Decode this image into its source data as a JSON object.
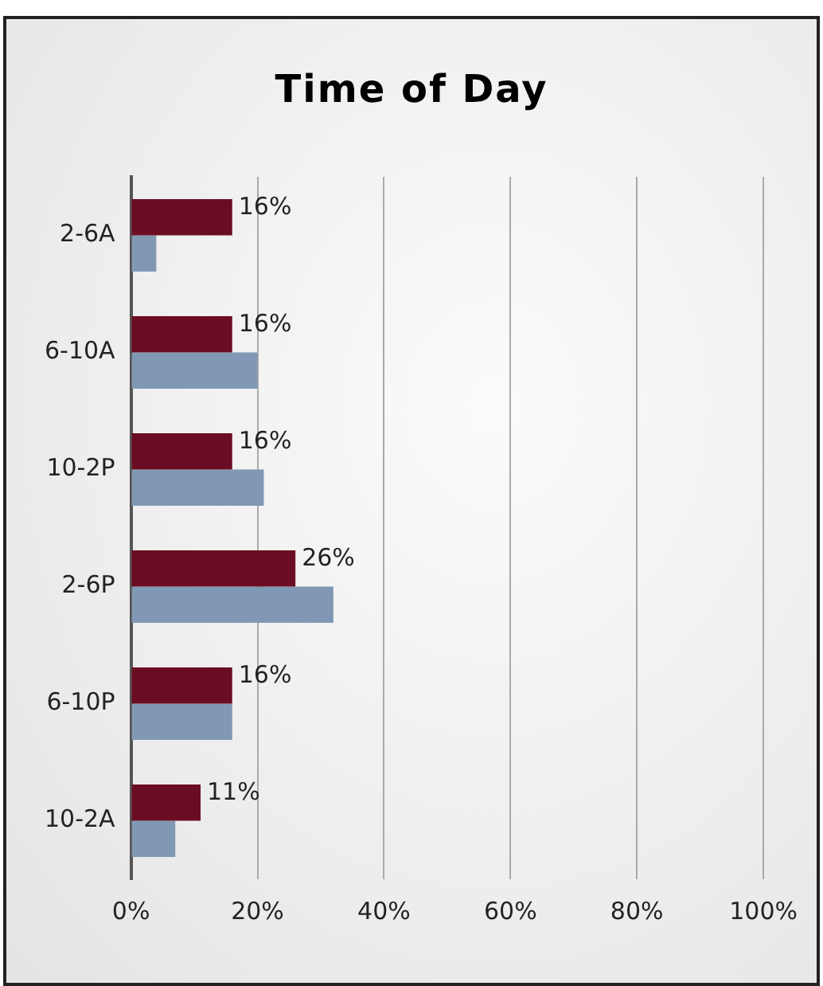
{
  "chart_data": {
    "type": "bar",
    "orientation": "horizontal",
    "title": "Time of Day",
    "categories": [
      "2-6A",
      "6-10A",
      "10-2P",
      "2-6P",
      "6-10P",
      "10-2A"
    ],
    "series": [
      {
        "color": "#6b0d22",
        "values": [
          16,
          16,
          16,
          26,
          16,
          11
        ],
        "value_labels": [
          "16%",
          "16%",
          "16%",
          "26%",
          "16%",
          "11%"
        ]
      },
      {
        "color": "#8098b4",
        "values": [
          4,
          20,
          21,
          32,
          16,
          7
        ]
      }
    ],
    "xlim": [
      0,
      100
    ],
    "xticks": [
      {
        "value": 0,
        "label": "0%"
      },
      {
        "value": 20,
        "label": "20%"
      },
      {
        "value": 40,
        "label": "40%"
      },
      {
        "value": 60,
        "label": "60%"
      },
      {
        "value": 80,
        "label": "80%"
      },
      {
        "value": 100,
        "label": "100%"
      }
    ],
    "grid": "x",
    "legend": false
  }
}
